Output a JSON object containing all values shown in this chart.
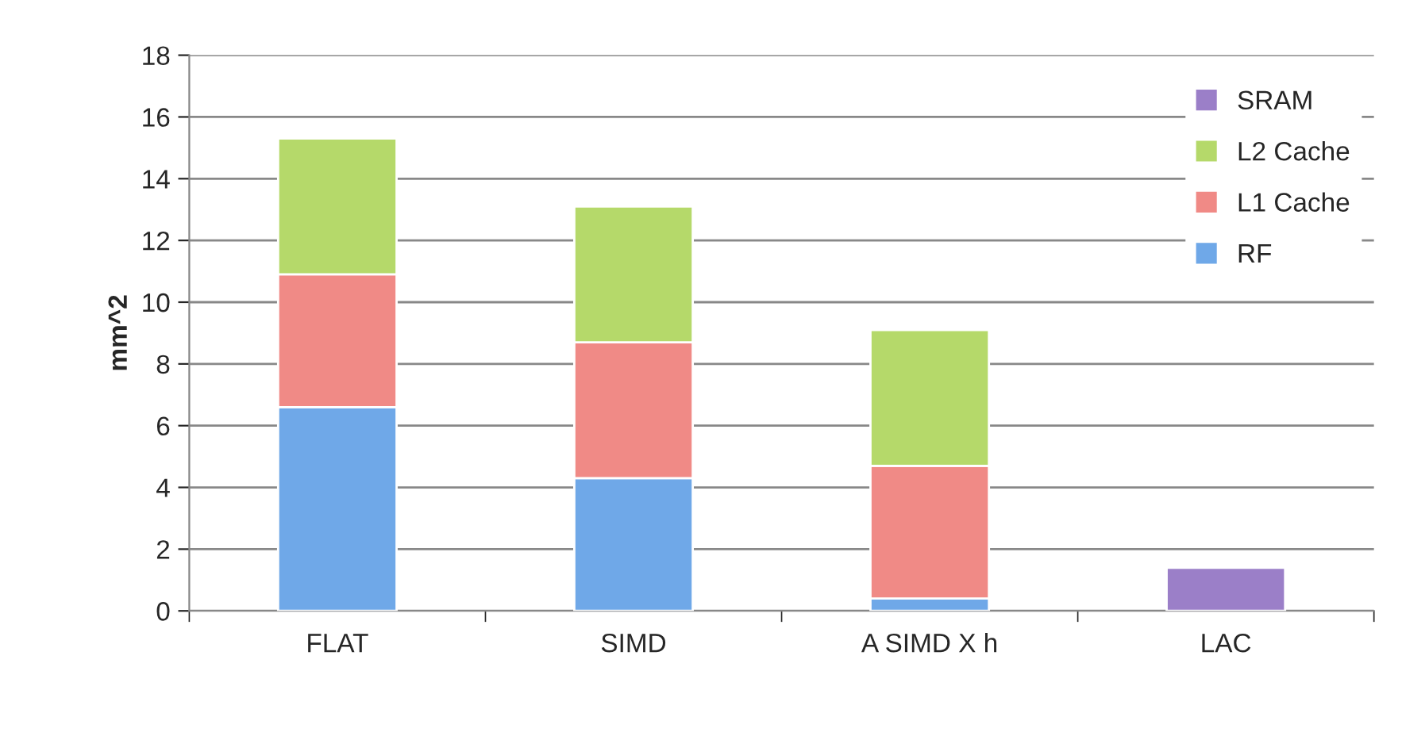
{
  "chart_data": {
    "type": "bar",
    "stacked": true,
    "ylabel": "mm^2",
    "categories": [
      "FLAT",
      "SIMD",
      "A SIMD X h",
      "LAC"
    ],
    "series": [
      {
        "name": "RF",
        "color": "#6fa8e8",
        "values": [
          6.6,
          4.3,
          0.4,
          null
        ]
      },
      {
        "name": "L1 Cache",
        "color": "#f08a86",
        "values": [
          4.3,
          4.4,
          4.3,
          null
        ]
      },
      {
        "name": "L2 Cache",
        "color": "#b5d96a",
        "values": [
          4.4,
          4.4,
          4.4,
          null
        ]
      },
      {
        "name": "SRAM",
        "color": "#9b7fc8",
        "values": [
          null,
          null,
          null,
          1.4
        ]
      }
    ],
    "ylim": [
      0,
      18
    ],
    "yticks": [
      0,
      2,
      4,
      6,
      8,
      10,
      12,
      14,
      16,
      18
    ],
    "grid": "y",
    "legend": "right"
  }
}
